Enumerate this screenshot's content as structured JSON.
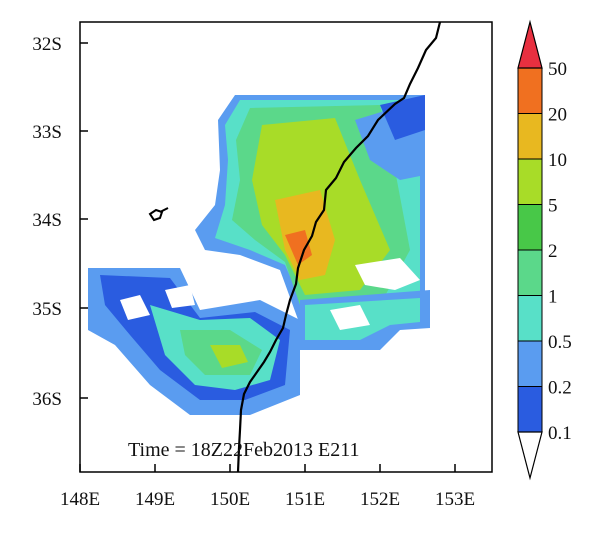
{
  "map": {
    "time_label": "Time = 18Z22Feb2013 E211",
    "lat_ticks": [
      "32S",
      "33S",
      "34S",
      "35S",
      "36S"
    ],
    "lon_ticks": [
      "148E",
      "149E",
      "150E",
      "151E",
      "152E",
      "153E"
    ],
    "lon_range": [
      148,
      153.5
    ],
    "lat_range": [
      -36.85,
      -31.5
    ]
  },
  "colorbar": {
    "labels": [
      "0.1",
      "0.2",
      "0.5",
      "1",
      "2",
      "5",
      "10",
      "20",
      "50"
    ],
    "colors": [
      "#2a5ce0",
      "#5a9cf0",
      "#58e0c8",
      "#5bd88a",
      "#48c848",
      "#a8dc28",
      "#e8b820",
      "#f07020",
      "#e83040"
    ],
    "under_color": "#ffffff",
    "over_color": "#e83040"
  },
  "colors": {
    "coast": "#000000",
    "frame": "#000000"
  }
}
